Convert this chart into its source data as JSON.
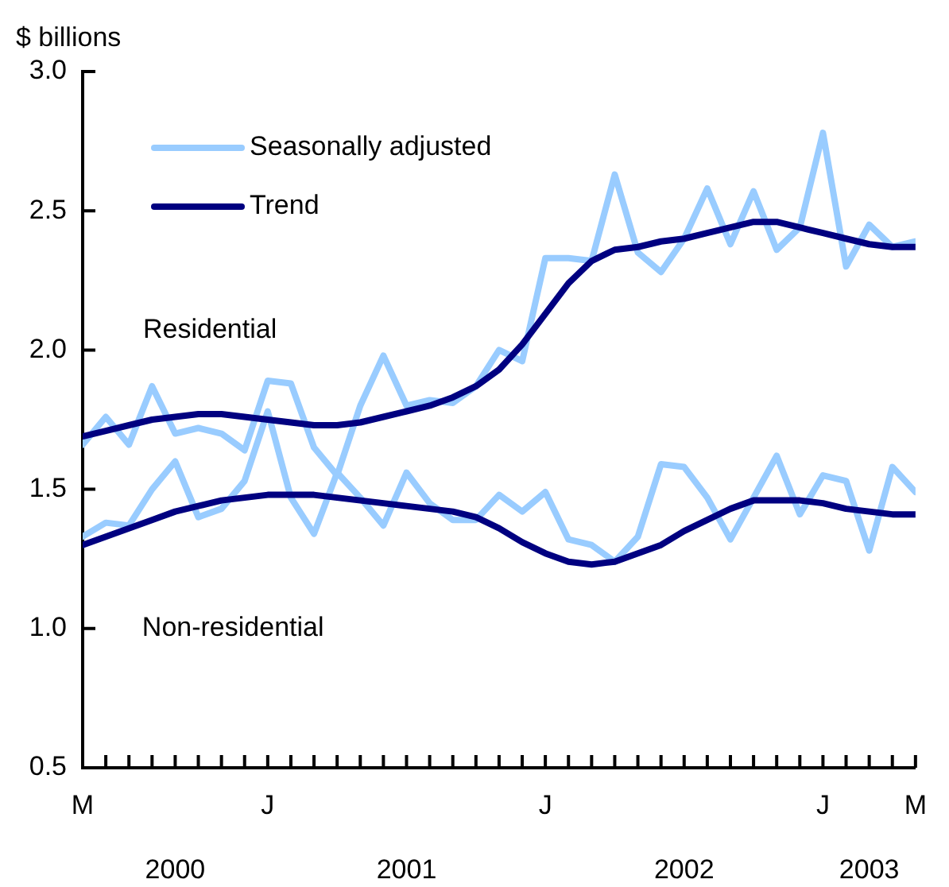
{
  "chart_data": {
    "type": "line",
    "ylabel": "$ billions",
    "categories": [
      "M",
      null,
      null,
      null,
      null,
      null,
      null,
      null,
      "J",
      null,
      null,
      null,
      null,
      null,
      null,
      null,
      null,
      null,
      null,
      null,
      "J",
      null,
      null,
      null,
      null,
      null,
      null,
      null,
      null,
      null,
      null,
      null,
      "J",
      null,
      null,
      null,
      "M"
    ],
    "series": [
      {
        "name": "Seasonally adjusted",
        "color": "#99ccff",
        "values": [
          1.66,
          1.76,
          1.66,
          1.87,
          1.7,
          1.72,
          1.7,
          1.64,
          1.89,
          1.88,
          1.65,
          1.55,
          1.8,
          1.98,
          1.8,
          1.82,
          1.81,
          1.87,
          2.0,
          1.96,
          2.33,
          2.33,
          2.32,
          2.63,
          2.35,
          2.28,
          2.4,
          2.58,
          2.38,
          2.57,
          2.36,
          2.44,
          2.78,
          2.3,
          2.45,
          2.37,
          2.39
        ]
      },
      {
        "name": "Trend",
        "color": "#000080",
        "values": [
          1.69,
          1.71,
          1.73,
          1.75,
          1.76,
          1.77,
          1.77,
          1.76,
          1.75,
          1.74,
          1.73,
          1.73,
          1.74,
          1.76,
          1.78,
          1.8,
          1.83,
          1.87,
          1.93,
          2.02,
          2.13,
          2.24,
          2.32,
          2.36,
          2.37,
          2.39,
          2.4,
          2.42,
          2.44,
          2.46,
          2.46,
          2.44,
          2.42,
          2.4,
          2.38,
          2.37,
          2.37
        ]
      },
      {
        "color": "#99ccff",
        "values": [
          1.33,
          1.38,
          1.37,
          1.5,
          1.6,
          1.4,
          1.43,
          1.53,
          1.78,
          1.47,
          1.34,
          1.56,
          1.47,
          1.37,
          1.56,
          1.45,
          1.39,
          1.39,
          1.48,
          1.42,
          1.49,
          1.32,
          1.3,
          1.24,
          1.33,
          1.59,
          1.58,
          1.47,
          1.32,
          1.47,
          1.62,
          1.41,
          1.55,
          1.53,
          1.28,
          1.58,
          1.49
        ]
      },
      {
        "color": "#000080",
        "values": [
          1.3,
          1.33,
          1.36,
          1.39,
          1.42,
          1.44,
          1.46,
          1.47,
          1.48,
          1.48,
          1.48,
          1.47,
          1.46,
          1.45,
          1.44,
          1.43,
          1.42,
          1.4,
          1.36,
          1.31,
          1.27,
          1.24,
          1.23,
          1.24,
          1.27,
          1.3,
          1.35,
          1.39,
          1.43,
          1.46,
          1.46,
          1.46,
          1.45,
          1.43,
          1.42,
          1.41,
          1.41
        ]
      }
    ],
    "ylim": [
      0.5,
      3.0
    ],
    "yticks": [
      {
        "value": 0.5,
        "label": "0.5"
      },
      {
        "value": 1.0,
        "label": "1.0"
      },
      {
        "value": 1.5,
        "label": "1.5"
      },
      {
        "value": 2.0,
        "label": "2.0"
      },
      {
        "value": 2.5,
        "label": "2.5"
      },
      {
        "value": 3.0,
        "label": "3.0"
      }
    ],
    "annotations": [
      "Residential",
      "Non-residential",
      "2000",
      "2001",
      "2002",
      "2003"
    ],
    "grid": false,
    "legend": "top left",
    "marker": "none",
    "line_style": "solid"
  }
}
